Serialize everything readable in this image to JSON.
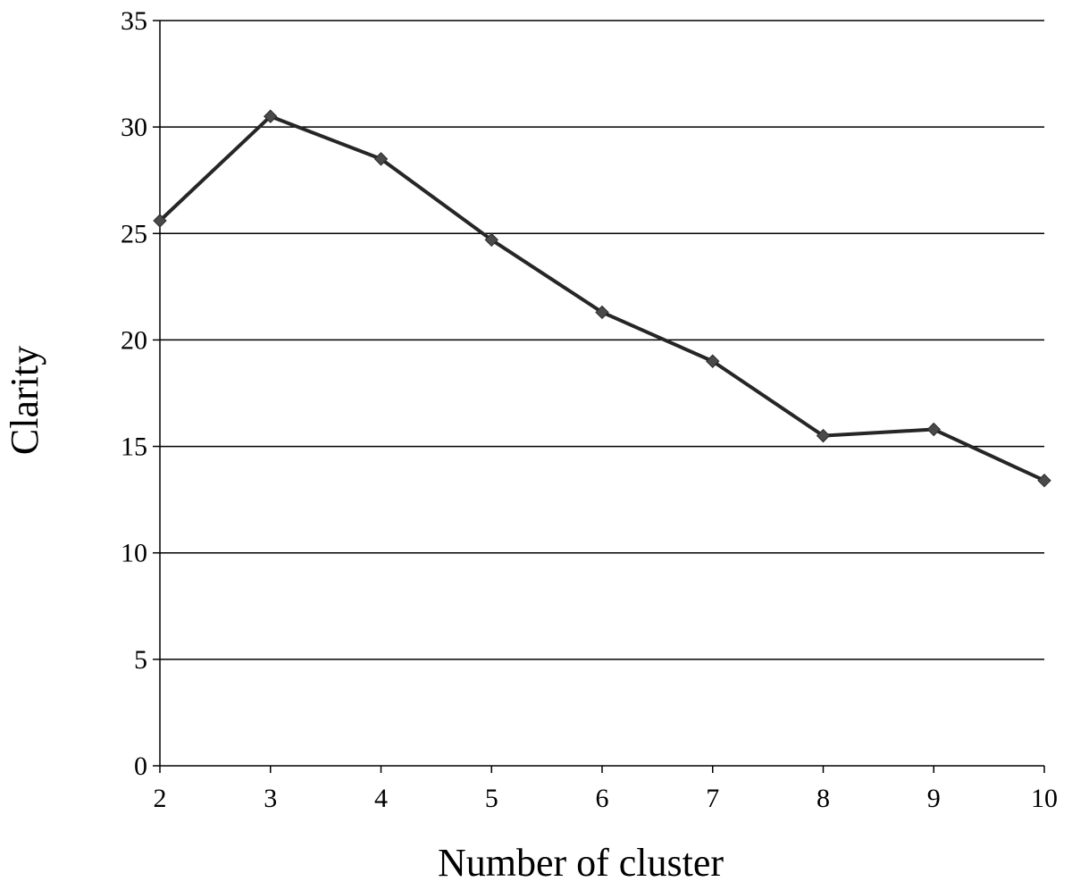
{
  "chart_data": {
    "type": "line",
    "title": "",
    "xlabel": "Number of cluster",
    "ylabel": "Clarity",
    "x": [
      2,
      3,
      4,
      5,
      6,
      7,
      8,
      9,
      10
    ],
    "series": [
      {
        "values": [
          25.6,
          30.5,
          28.5,
          24.7,
          21.3,
          19.0,
          15.5,
          15.8,
          13.4
        ]
      }
    ],
    "xlim": [
      2,
      10
    ],
    "ylim": [
      0,
      35
    ],
    "yticks": [
      0,
      5,
      10,
      15,
      20,
      25,
      30,
      35
    ],
    "xticks": [
      2,
      3,
      4,
      5,
      6,
      7,
      8,
      9,
      10
    ],
    "grid": "horizontal",
    "legend": "none",
    "line_color": "#262626",
    "marker": "diamond",
    "marker_color": "#4a4a4a",
    "gridline_color": "#000000"
  }
}
